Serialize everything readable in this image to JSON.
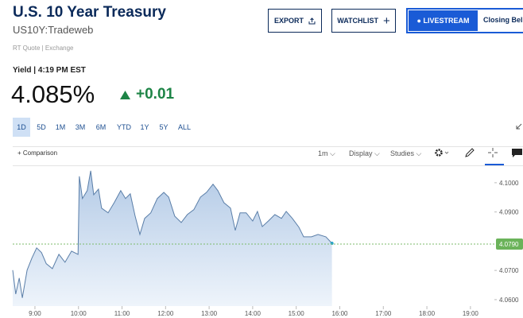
{
  "header": {
    "title": "U.S. 10 Year Treasury",
    "symbol": "US10Y:Tradeweb",
    "source": "RT Quote | Exchange"
  },
  "buttons": {
    "export": "EXPORT",
    "watchlist": "WATCHLIST",
    "livestream": "LIVESTREAM",
    "closing": "Closing Bel"
  },
  "quote": {
    "label": "Yield | 4:19 PM EST",
    "price": "4.085%",
    "change": "+0.01"
  },
  "ranges": [
    "1D",
    "5D",
    "1M",
    "3M",
    "6M",
    "YTD",
    "1Y",
    "5Y",
    "ALL"
  ],
  "toolbar": {
    "comparison": "Comparison",
    "interval": "1m",
    "display": "Display",
    "studies": "Studies"
  },
  "chart": {
    "type": "area",
    "color": "#5a7ea8",
    "x": [
      8.49,
      8.56,
      8.64,
      8.71,
      8.82,
      8.93,
      9.04,
      9.15,
      9.26,
      9.4,
      9.55,
      9.69,
      9.84,
      9.99,
      10.02,
      10.09,
      10.2,
      10.28,
      10.35,
      10.46,
      10.53,
      10.68,
      10.82,
      10.97,
      11.08,
      11.19,
      11.3,
      11.41,
      11.52,
      11.66,
      11.81,
      11.96,
      12.07,
      12.21,
      12.36,
      12.5,
      12.65,
      12.8,
      12.94,
      13.09,
      13.2,
      13.34,
      13.49,
      13.6,
      13.71,
      13.85,
      14.0,
      14.11,
      14.22,
      14.36,
      14.51,
      14.66,
      14.77,
      14.91,
      15.06,
      15.17,
      15.35,
      15.5,
      15.68,
      15.82
    ],
    "values": [
      4.0701,
      4.0619,
      4.0674,
      4.0606,
      4.0701,
      4.0742,
      4.0777,
      4.0761,
      4.0723,
      4.0706,
      4.0755,
      4.0728,
      4.0766,
      4.0755,
      4.1022,
      4.0946,
      4.0973,
      4.1041,
      4.0959,
      4.0978,
      4.0913,
      4.0897,
      4.0932,
      4.0973,
      4.0946,
      4.0962,
      4.0886,
      4.0823,
      4.0878,
      4.0897,
      4.0946,
      4.0967,
      4.0951,
      4.0886,
      4.0864,
      4.0891,
      4.0908,
      4.0951,
      4.0967,
      4.0995,
      4.0973,
      4.0932,
      4.0913,
      4.0837,
      4.0897,
      4.0897,
      4.0869,
      4.0902,
      4.085,
      4.0869,
      4.0891,
      4.0878,
      4.0902,
      4.0878,
      4.0848,
      4.0815,
      4.0815,
      4.0823,
      4.0815,
      4.0793
    ],
    "xlim": [
      8.49,
      19.55
    ],
    "ylim": [
      4.0578,
      4.1054
    ],
    "xticks": [
      {
        "value": 9,
        "label": "9:00"
      },
      {
        "value": 10,
        "label": "10:00"
      },
      {
        "value": 11,
        "label": "11:00"
      },
      {
        "value": 12,
        "label": "12:00"
      },
      {
        "value": 13,
        "label": "13:00"
      },
      {
        "value": 14,
        "label": "14:00"
      },
      {
        "value": 15,
        "label": "15:00"
      },
      {
        "value": 16,
        "label": "16:00"
      },
      {
        "value": 17,
        "label": "17:00"
      },
      {
        "value": 18,
        "label": "18:00"
      },
      {
        "value": 19,
        "label": "19:00"
      }
    ],
    "yticks": [
      {
        "value": 4.06,
        "label": "4.0600"
      },
      {
        "value": 4.07,
        "label": "4.0700"
      },
      {
        "value": 4.09,
        "label": "4.0900"
      },
      {
        "value": 4.1,
        "label": "4.1000"
      }
    ],
    "last_price": {
      "value": 4.079,
      "label": "4.0790"
    }
  }
}
